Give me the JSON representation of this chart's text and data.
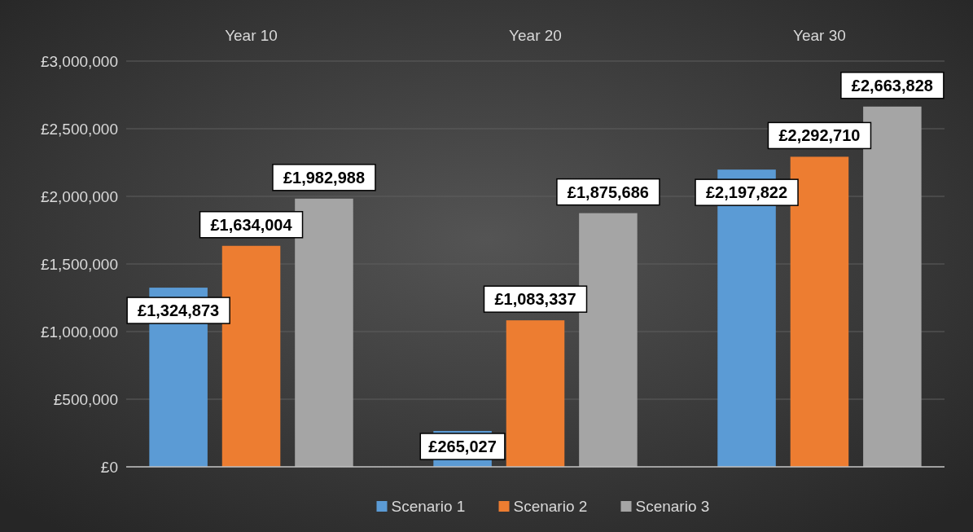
{
  "chart_data": {
    "type": "bar",
    "categories": [
      "Year 10",
      "Year 20",
      "Year 30"
    ],
    "series": [
      {
        "name": "Scenario 1",
        "color": "#5b9bd5",
        "values": [
          1324873,
          265027,
          2197822
        ],
        "value_labels": [
          "£1,324,873",
          "£265,027",
          "£2,197,822"
        ]
      },
      {
        "name": "Scenario 2",
        "color": "#ed7d31",
        "values": [
          1634004,
          1083337,
          2292710
        ],
        "value_labels": [
          "£1,634,004",
          "£1,083,337",
          "£2,292,710"
        ]
      },
      {
        "name": "Scenario 3",
        "color": "#a5a5a5",
        "values": [
          1982988,
          1875686,
          2663828
        ],
        "value_labels": [
          "£1,982,988",
          "£1,875,686",
          "£2,663,828"
        ]
      }
    ],
    "ylim": [
      0,
      3000000
    ],
    "yticks": [
      {
        "value": 0,
        "label": "£0"
      },
      {
        "value": 500000,
        "label": "£500,000"
      },
      {
        "value": 1000000,
        "label": "£1,000,000"
      },
      {
        "value": 1500000,
        "label": "£1,500,000"
      },
      {
        "value": 2000000,
        "label": "£2,000,000"
      },
      {
        "value": 2500000,
        "label": "£2,500,000"
      },
      {
        "value": 3000000,
        "label": "£3,000,000"
      }
    ],
    "grid": "y",
    "legend": "bottom"
  }
}
